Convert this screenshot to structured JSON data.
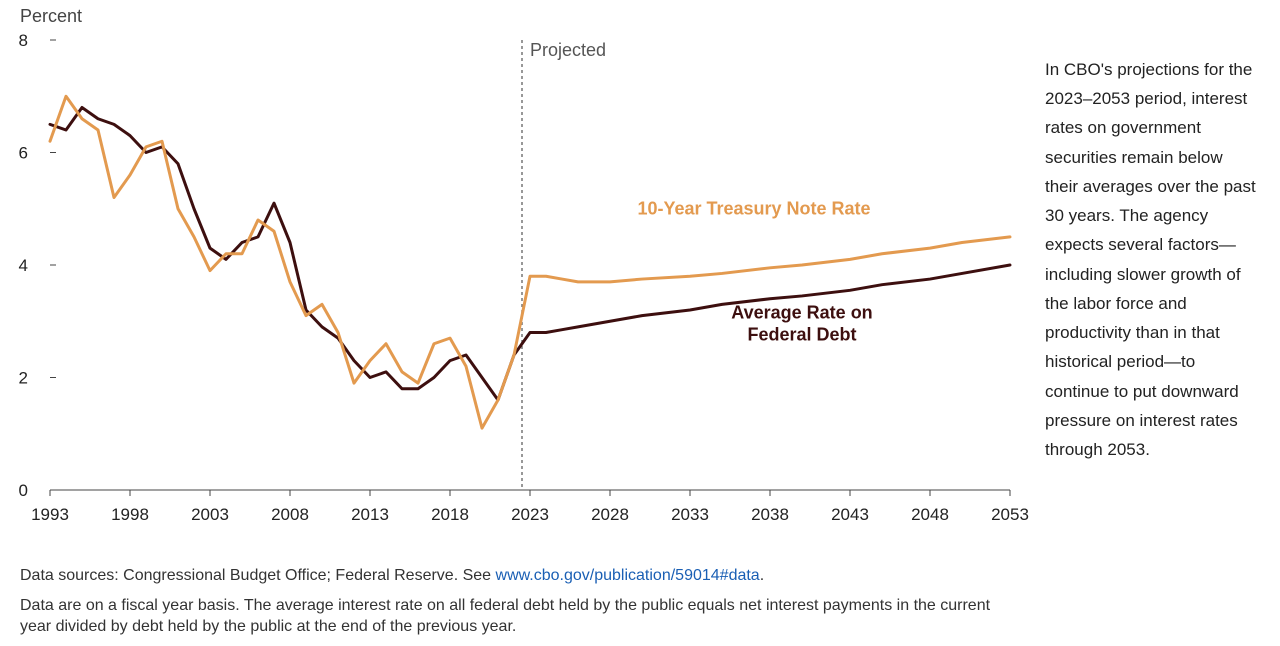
{
  "chart": {
    "type": "line",
    "y_axis_title": "Percent",
    "projected_label": "Projected",
    "projection_start_year": 2022.5,
    "xlim": [
      1993,
      2053
    ],
    "ylim": [
      0,
      8
    ],
    "xtick_step": 5,
    "ytick_step": 2,
    "xticks": [
      1993,
      1998,
      2003,
      2008,
      2013,
      2018,
      2023,
      2028,
      2033,
      2038,
      2043,
      2048,
      2053
    ],
    "yticks": [
      0,
      2,
      4,
      6,
      8
    ],
    "background_color": "#ffffff",
    "axis_color": "#444444",
    "projection_line_color": "#777777",
    "projection_line_dash": "3,3",
    "line_width": 3,
    "series": {
      "treasury": {
        "label": "10-Year Treasury Note Rate",
        "color": "#e39a4f",
        "label_pos": {
          "year": 2037,
          "value": 4.9
        },
        "data": [
          {
            "year": 1993,
            "value": 6.2
          },
          {
            "year": 1994,
            "value": 7.0
          },
          {
            "year": 1995,
            "value": 6.6
          },
          {
            "year": 1996,
            "value": 6.4
          },
          {
            "year": 1997,
            "value": 5.2
          },
          {
            "year": 1998,
            "value": 5.6
          },
          {
            "year": 1999,
            "value": 6.1
          },
          {
            "year": 2000,
            "value": 6.2
          },
          {
            "year": 2001,
            "value": 5.0
          },
          {
            "year": 2002,
            "value": 4.5
          },
          {
            "year": 2003,
            "value": 3.9
          },
          {
            "year": 2004,
            "value": 4.2
          },
          {
            "year": 2005,
            "value": 4.2
          },
          {
            "year": 2006,
            "value": 4.8
          },
          {
            "year": 2007,
            "value": 4.6
          },
          {
            "year": 2008,
            "value": 3.7
          },
          {
            "year": 2009,
            "value": 3.1
          },
          {
            "year": 2010,
            "value": 3.3
          },
          {
            "year": 2011,
            "value": 2.8
          },
          {
            "year": 2012,
            "value": 1.9
          },
          {
            "year": 2013,
            "value": 2.3
          },
          {
            "year": 2014,
            "value": 2.6
          },
          {
            "year": 2015,
            "value": 2.1
          },
          {
            "year": 2016,
            "value": 1.9
          },
          {
            "year": 2017,
            "value": 2.6
          },
          {
            "year": 2018,
            "value": 2.7
          },
          {
            "year": 2019,
            "value": 2.2
          },
          {
            "year": 2020,
            "value": 1.1
          },
          {
            "year": 2021,
            "value": 1.6
          },
          {
            "year": 2022,
            "value": 2.4
          },
          {
            "year": 2023,
            "value": 3.8
          },
          {
            "year": 2024,
            "value": 3.8
          },
          {
            "year": 2025,
            "value": 3.75
          },
          {
            "year": 2026,
            "value": 3.7
          },
          {
            "year": 2027,
            "value": 3.7
          },
          {
            "year": 2028,
            "value": 3.7
          },
          {
            "year": 2030,
            "value": 3.75
          },
          {
            "year": 2033,
            "value": 3.8
          },
          {
            "year": 2035,
            "value": 3.85
          },
          {
            "year": 2038,
            "value": 3.95
          },
          {
            "year": 2040,
            "value": 4.0
          },
          {
            "year": 2043,
            "value": 4.1
          },
          {
            "year": 2045,
            "value": 4.2
          },
          {
            "year": 2048,
            "value": 4.3
          },
          {
            "year": 2050,
            "value": 4.4
          },
          {
            "year": 2053,
            "value": 4.5
          }
        ]
      },
      "avg_rate": {
        "label": "Average Rate on Federal Debt",
        "color": "#3d0f0f",
        "label_pos": {
          "year": 2040,
          "value": 3.05
        },
        "data": [
          {
            "year": 1993,
            "value": 6.5
          },
          {
            "year": 1994,
            "value": 6.4
          },
          {
            "year": 1995,
            "value": 6.8
          },
          {
            "year": 1996,
            "value": 6.6
          },
          {
            "year": 1997,
            "value": 6.5
          },
          {
            "year": 1998,
            "value": 6.3
          },
          {
            "year": 1999,
            "value": 6.0
          },
          {
            "year": 2000,
            "value": 6.1
          },
          {
            "year": 2001,
            "value": 5.8
          },
          {
            "year": 2002,
            "value": 5.0
          },
          {
            "year": 2003,
            "value": 4.3
          },
          {
            "year": 2004,
            "value": 4.1
          },
          {
            "year": 2005,
            "value": 4.4
          },
          {
            "year": 2006,
            "value": 4.5
          },
          {
            "year": 2007,
            "value": 5.1
          },
          {
            "year": 2008,
            "value": 4.4
          },
          {
            "year": 2009,
            "value": 3.2
          },
          {
            "year": 2010,
            "value": 2.9
          },
          {
            "year": 2011,
            "value": 2.7
          },
          {
            "year": 2012,
            "value": 2.3
          },
          {
            "year": 2013,
            "value": 2.0
          },
          {
            "year": 2014,
            "value": 2.1
          },
          {
            "year": 2015,
            "value": 1.8
          },
          {
            "year": 2016,
            "value": 1.8
          },
          {
            "year": 2017,
            "value": 2.0
          },
          {
            "year": 2018,
            "value": 2.3
          },
          {
            "year": 2019,
            "value": 2.4
          },
          {
            "year": 2020,
            "value": 2.0
          },
          {
            "year": 2021,
            "value": 1.6
          },
          {
            "year": 2022,
            "value": 2.4
          },
          {
            "year": 2023,
            "value": 2.8
          },
          {
            "year": 2024,
            "value": 2.8
          },
          {
            "year": 2025,
            "value": 2.85
          },
          {
            "year": 2026,
            "value": 2.9
          },
          {
            "year": 2028,
            "value": 3.0
          },
          {
            "year": 2030,
            "value": 3.1
          },
          {
            "year": 2033,
            "value": 3.2
          },
          {
            "year": 2035,
            "value": 3.3
          },
          {
            "year": 2038,
            "value": 3.4
          },
          {
            "year": 2040,
            "value": 3.45
          },
          {
            "year": 2043,
            "value": 3.55
          },
          {
            "year": 2045,
            "value": 3.65
          },
          {
            "year": 2048,
            "value": 3.75
          },
          {
            "year": 2050,
            "value": 3.85
          },
          {
            "year": 2053,
            "value": 4.0
          }
        ]
      }
    }
  },
  "side_text": "In CBO's projections for the 2023–2053 period, interest rates on government securities remain below their averages over the past 30 years. The agency expects several factors—including slower growth of the labor force and productivity than in that historical period—to continue to put downward pressure on interest rates through 2053.",
  "notes": {
    "source_prefix": "Data sources: Congressional Budget Office; Federal Reserve. See ",
    "source_link": "www.cbo.gov/publication/59014#data",
    "source_suffix": ".",
    "footnote": "Data are on a fiscal year basis. The average interest rate on all federal debt held by the public equals net interest payments in the current year divided by debt held by the public at the end of the previous year."
  }
}
